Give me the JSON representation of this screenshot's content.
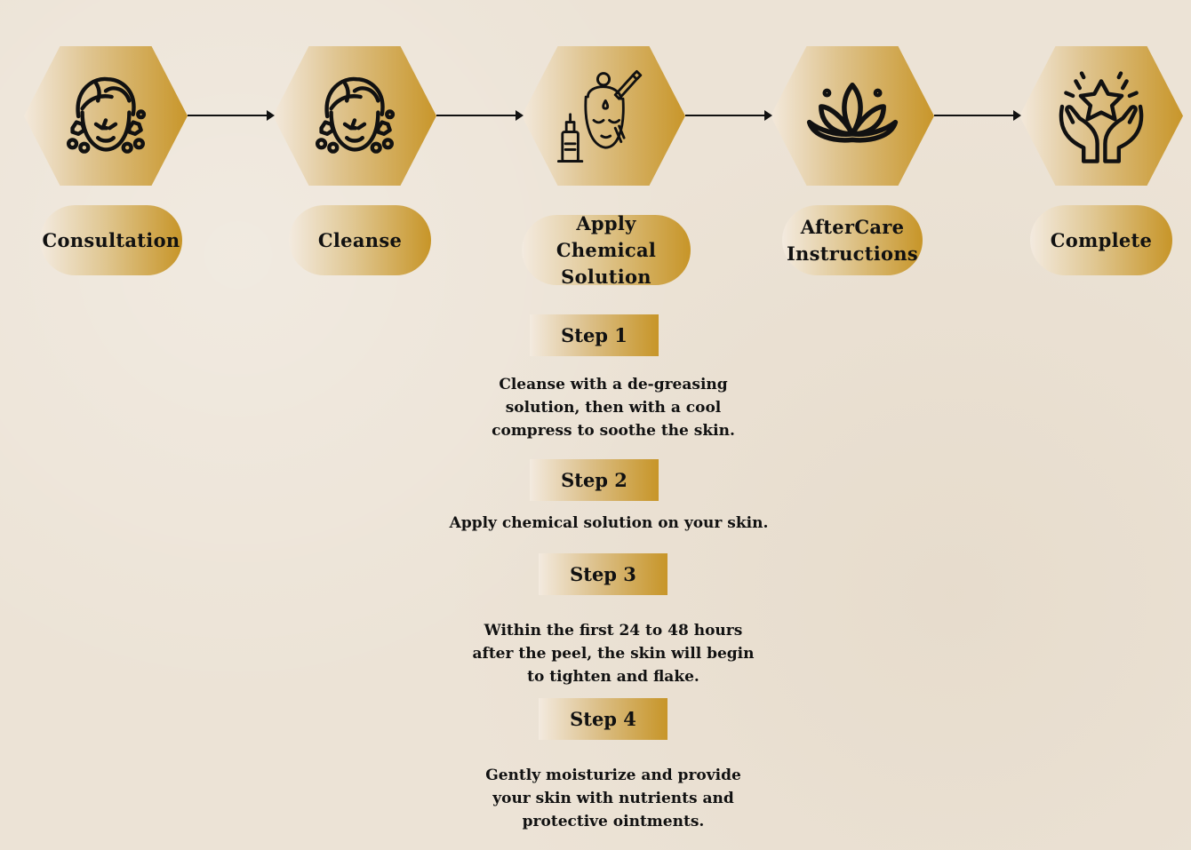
{
  "process": {
    "stages": [
      {
        "label": "Consultation",
        "icon": "face-towel-icon"
      },
      {
        "label": "Cleanse",
        "icon": "face-towel-icon"
      },
      {
        "label": "Apply Chemical Solution",
        "icon": "face-dropper-icon"
      },
      {
        "label": "AfterCare Instructions",
        "icon": "lotus-icon"
      },
      {
        "label": "Complete",
        "icon": "hands-star-icon"
      }
    ]
  },
  "steps": [
    {
      "title": "Step 1",
      "text": "Cleanse with a de-greasing solution, then with a cool compress to soothe the skin."
    },
    {
      "title": "Step 2",
      "text": "Apply chemical solution on your skin."
    },
    {
      "title": "Step 3",
      "text": "Within the first 24 to 48 hours after the peel, the skin will begin to tighten and flake."
    },
    {
      "title": "Step 4",
      "text": "Gently moisturize and provide your skin with nutrients and protective ointments."
    }
  ],
  "colors": {
    "gold": "#c8962a",
    "background": "#ece3d6",
    "ink": "#111111"
  }
}
